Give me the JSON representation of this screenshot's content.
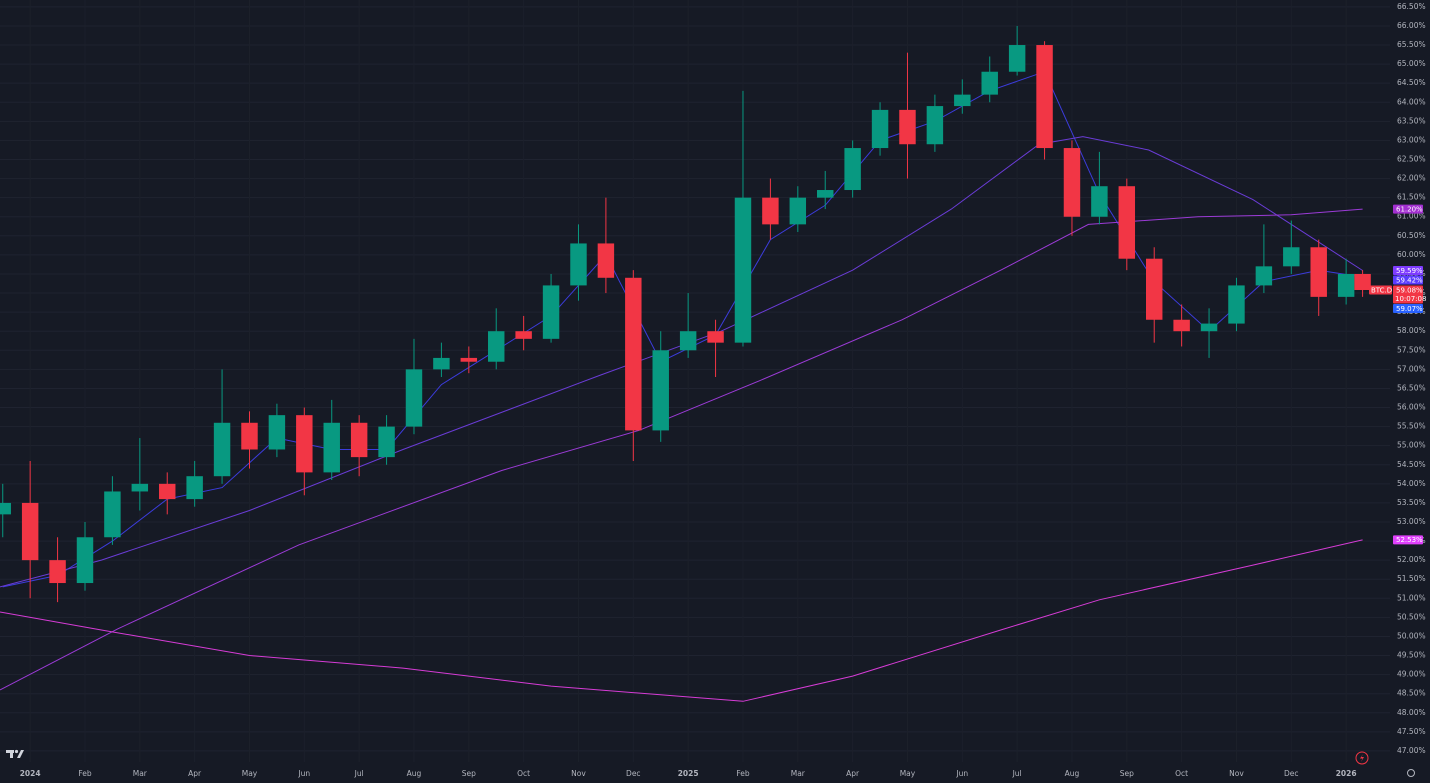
{
  "chart_data": {
    "type": "candlestick",
    "xlim": [
      -0.55,
      24.8
    ],
    "ylim": [
      46.71,
      66.68
    ],
    "grid": true,
    "xticks": [
      {
        "value": 0,
        "label": "2024"
      },
      {
        "value": 1,
        "label": "Feb"
      },
      {
        "value": 2,
        "label": "Mar"
      },
      {
        "value": 3,
        "label": "Apr"
      },
      {
        "value": 4,
        "label": "May"
      },
      {
        "value": 5,
        "label": "Jun"
      },
      {
        "value": 6,
        "label": "Jul"
      },
      {
        "value": 7,
        "label": "Aug"
      },
      {
        "value": 8,
        "label": "Sep"
      },
      {
        "value": 9,
        "label": "Oct"
      },
      {
        "value": 10,
        "label": "Nov"
      },
      {
        "value": 11,
        "label": "Dec"
      },
      {
        "value": 12,
        "label": "2025"
      },
      {
        "value": 13,
        "label": "Feb"
      },
      {
        "value": 14,
        "label": "Mar"
      },
      {
        "value": 15,
        "label": "Apr"
      },
      {
        "value": 16,
        "label": "May"
      },
      {
        "value": 17,
        "label": "Jun"
      },
      {
        "value": 18,
        "label": "Jul"
      },
      {
        "value": 19,
        "label": "Aug"
      },
      {
        "value": 20,
        "label": "Sep"
      },
      {
        "value": 21,
        "label": "Oct"
      },
      {
        "value": 22,
        "label": "Nov"
      },
      {
        "value": 23,
        "label": "Dec"
      },
      {
        "value": 24,
        "label": "2026"
      }
    ],
    "yticks": [
      {
        "value": 47,
        "label": "47.00%"
      },
      {
        "value": 47.5,
        "label": "47.50%"
      },
      {
        "value": 48,
        "label": "48.00%"
      },
      {
        "value": 48.5,
        "label": "48.50%"
      },
      {
        "value": 49,
        "label": "49.00%"
      },
      {
        "value": 49.5,
        "label": "49.50%"
      },
      {
        "value": 50,
        "label": "50.00%"
      },
      {
        "value": 50.5,
        "label": "50.50%"
      },
      {
        "value": 51,
        "label": "51.00%"
      },
      {
        "value": 51.5,
        "label": "51.50%"
      },
      {
        "value": 52,
        "label": "52.00%"
      },
      {
        "value": 52.5,
        "label": "52.50%"
      },
      {
        "value": 53,
        "label": "53.00%"
      },
      {
        "value": 53.5,
        "label": "53.50%"
      },
      {
        "value": 54,
        "label": "54.00%"
      },
      {
        "value": 54.5,
        "label": "54.50%"
      },
      {
        "value": 55,
        "label": "55.00%"
      },
      {
        "value": 55.5,
        "label": "55.50%"
      },
      {
        "value": 56,
        "label": "56.00%"
      },
      {
        "value": 56.5,
        "label": "56.50%"
      },
      {
        "value": 57,
        "label": "57.00%"
      },
      {
        "value": 57.5,
        "label": "57.50%"
      },
      {
        "value": 58,
        "label": "58.00%"
      },
      {
        "value": 58.5,
        "label": "58.50%"
      },
      {
        "value": 59,
        "label": "59.00%"
      },
      {
        "value": 59.5,
        "label": "59.50%"
      },
      {
        "value": 60,
        "label": "60.00%"
      },
      {
        "value": 60.5,
        "label": "60.50%"
      },
      {
        "value": 61,
        "label": "61.00%"
      },
      {
        "value": 61.5,
        "label": "61.50%"
      },
      {
        "value": 62,
        "label": "62.00%"
      },
      {
        "value": 62.5,
        "label": "62.50%"
      },
      {
        "value": 63,
        "label": "63.00%"
      },
      {
        "value": 63.5,
        "label": "63.50%"
      },
      {
        "value": 64,
        "label": "64.00%"
      },
      {
        "value": 64.5,
        "label": "64.50%"
      },
      {
        "value": 65,
        "label": "65.00%"
      },
      {
        "value": 65.5,
        "label": "65.50%"
      },
      {
        "value": 66,
        "label": "66.00%"
      },
      {
        "value": 66.5,
        "label": "66.50%"
      }
    ],
    "candles": {
      "up_color": "#089981",
      "down_color": "#f23645",
      "x": [
        -0.5,
        0,
        0.5,
        1,
        1.5,
        2,
        2.5,
        3,
        3.5,
        4,
        4.5,
        5,
        5.5,
        6,
        6.5,
        7,
        7.5,
        8,
        8.5,
        9,
        9.5,
        10,
        10.5,
        11,
        11.5,
        12,
        12.5,
        13,
        13.5,
        14,
        14.5,
        15,
        15.5,
        16,
        16.5,
        17,
        17.5,
        18,
        18.5,
        19,
        19.5,
        20,
        20.5,
        21,
        21.5,
        22,
        22.5,
        23,
        23.5,
        24,
        24.3
      ],
      "open": [
        53.2,
        53.5,
        52.0,
        51.4,
        52.6,
        53.8,
        54.0,
        53.6,
        54.2,
        55.6,
        54.9,
        55.8,
        54.3,
        55.6,
        54.7,
        55.5,
        57.0,
        57.3,
        57.2,
        58.0,
        57.8,
        59.2,
        60.3,
        59.4,
        55.4,
        57.5,
        58.0,
        57.7,
        61.5,
        60.8,
        61.5,
        61.7,
        62.8,
        63.8,
        62.9,
        63.9,
        64.2,
        64.8,
        65.5,
        62.8,
        61.0,
        61.8,
        59.9,
        58.3,
        58.0,
        58.2,
        59.2,
        59.7,
        60.2,
        58.9,
        59.5
      ],
      "high": [
        54.0,
        54.6,
        52.6,
        53.0,
        54.2,
        55.2,
        54.3,
        54.6,
        57.0,
        55.9,
        56.1,
        56.0,
        56.2,
        55.8,
        55.8,
        57.8,
        57.7,
        57.6,
        58.6,
        58.4,
        59.5,
        60.8,
        61.5,
        59.6,
        58.0,
        59.0,
        58.3,
        64.3,
        62.0,
        61.8,
        62.2,
        63.0,
        64.0,
        65.3,
        64.2,
        64.6,
        65.2,
        66.0,
        65.6,
        63.0,
        62.7,
        62.0,
        60.2,
        58.7,
        58.6,
        59.4,
        60.8,
        60.9,
        60.4,
        59.9,
        59.6
      ],
      "low": [
        52.6,
        51.0,
        50.9,
        51.2,
        52.4,
        53.3,
        53.2,
        53.4,
        54.0,
        54.4,
        54.7,
        53.7,
        54.1,
        54.2,
        54.5,
        55.3,
        56.8,
        56.9,
        57.0,
        57.5,
        57.7,
        58.8,
        59.0,
        54.6,
        55.1,
        57.3,
        56.8,
        57.6,
        60.4,
        60.6,
        61.2,
        61.5,
        62.6,
        62.0,
        62.7,
        63.7,
        64.0,
        64.7,
        62.5,
        60.5,
        60.8,
        59.6,
        57.7,
        57.6,
        57.3,
        58.0,
        59.0,
        59.5,
        58.4,
        58.7,
        58.9
      ],
      "close": [
        53.5,
        52.0,
        51.4,
        52.6,
        53.8,
        54.0,
        53.6,
        54.2,
        55.6,
        54.9,
        55.8,
        54.3,
        55.6,
        54.7,
        55.5,
        57.0,
        57.3,
        57.2,
        58.0,
        57.8,
        59.2,
        60.3,
        59.4,
        55.4,
        57.5,
        58.0,
        57.7,
        61.5,
        60.8,
        61.5,
        61.7,
        62.8,
        63.8,
        62.9,
        63.9,
        64.2,
        64.8,
        65.5,
        62.8,
        61.0,
        61.8,
        59.9,
        58.3,
        58.0,
        58.2,
        59.2,
        59.7,
        60.2,
        58.9,
        59.5,
        59.08
      ]
    },
    "series": [
      {
        "color": "#3c3cdc",
        "x": [
          -0.5,
          0.5,
          1.5,
          2.5,
          3.5,
          4.5,
          5.5,
          6.5,
          7.5,
          8.5,
          9.5,
          10.5,
          11.5,
          12.5,
          13.5,
          14.5,
          15.5,
          16.5,
          17.5,
          18.5,
          19.5,
          20.5,
          21.5,
          22.5,
          23.5,
          24.3
        ],
        "values": [
          51.3,
          51.6,
          52.5,
          53.6,
          53.9,
          55.2,
          54.9,
          54.9,
          56.6,
          57.5,
          58.4,
          60.0,
          57.2,
          57.9,
          60.4,
          61.3,
          63.0,
          63.5,
          64.3,
          64.8,
          61.6,
          59.3,
          58.0,
          59.3,
          59.6,
          59.42
        ]
      },
      {
        "color": "#6a3cd6",
        "x": [
          -0.55,
          1.3,
          4.0,
          6.8,
          10.4,
          12.6,
          15.0,
          16.8,
          18.4,
          19.2,
          20.4,
          22.3,
          24.3
        ],
        "values": [
          51.3,
          52.0,
          53.3,
          54.9,
          56.85,
          58.0,
          59.6,
          61.2,
          62.9,
          63.1,
          62.75,
          61.45,
          59.59
        ]
      },
      {
        "color": "#9b3bd6",
        "x": [
          -0.55,
          1.6,
          4.9,
          8.6,
          11.1,
          13.3,
          15.9,
          17.7,
          19.3,
          21.3,
          23.0,
          24.3
        ],
        "values": [
          48.6,
          50.2,
          52.4,
          54.35,
          55.4,
          56.7,
          58.3,
          59.6,
          60.8,
          61.0,
          61.05,
          61.2
        ]
      },
      {
        "color": "#d63cd6",
        "x": [
          -0.55,
          1.3,
          4.0,
          6.8,
          9.5,
          13.0,
          15.0,
          17.7,
          19.5,
          22.3,
          24.3
        ],
        "values": [
          50.64,
          50.17,
          49.5,
          49.17,
          48.7,
          48.3,
          48.96,
          50.17,
          50.96,
          51.87,
          52.53
        ]
      }
    ],
    "symbol": "BTC.D",
    "countdown": "10:07:08",
    "price_labels": [
      {
        "label": "61.20%",
        "value": 61.2,
        "color": "#a22fd0"
      },
      {
        "label": "59.59%",
        "value": 59.59,
        "color": "#7e3bff"
      },
      {
        "label": "59.42%",
        "value": 59.42,
        "color": "#5a3bff"
      },
      {
        "label": "59.08%",
        "value": 59.08,
        "color": "#f23645"
      },
      {
        "label": "59.07%",
        "value": 59.07,
        "color": "#2962ff"
      },
      {
        "label": "52.53%",
        "value": 52.53,
        "color": "#e040fb"
      }
    ]
  }
}
